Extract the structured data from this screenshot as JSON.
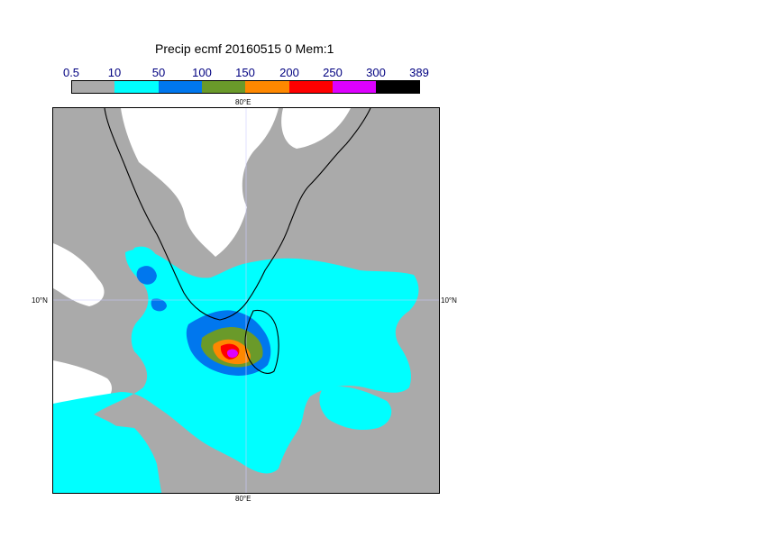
{
  "title": "Precip ecmf 20160515 0 Mem:1",
  "legend": {
    "ticks": [
      "0.5",
      "10",
      "50",
      "100",
      "150",
      "200",
      "250",
      "300",
      "389"
    ],
    "colors": [
      "#aaaaaa",
      "#00ffff",
      "#0077ee",
      "#6a9a2a",
      "#ff8800",
      "#ff0000",
      "#dd00ff",
      "#000000"
    ]
  },
  "axes": {
    "lon_top": "80°E",
    "lon_bottom": "80°E",
    "lat_left": "10°N",
    "lat_right": "10°N"
  },
  "colors": {
    "land_dry": "#ffffff",
    "gridline": "#ccccff",
    "coastline": "#000000"
  }
}
